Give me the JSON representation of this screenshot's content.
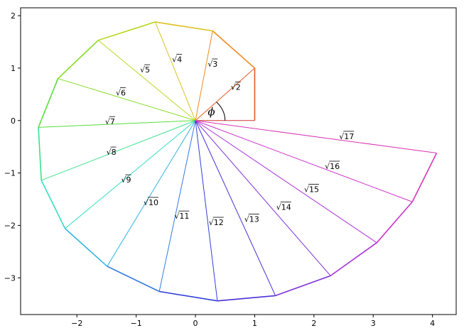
{
  "chart_data": {
    "type": "line",
    "title": "",
    "xlabel": "",
    "ylabel": "",
    "xlim": [
      -2.95,
      4.4
    ],
    "ylim": [
      -3.7,
      2.15
    ],
    "grid": false,
    "xticks": [
      -2,
      -1,
      0,
      1,
      2,
      3,
      4
    ],
    "yticks": [
      -3,
      -2,
      -1,
      0,
      1,
      2
    ],
    "xtick_labels": [
      "−2",
      "−1",
      "0",
      "1",
      "2",
      "3",
      "4"
    ],
    "ytick_labels": [
      "−3",
      "−2",
      "−1",
      "0",
      "1",
      "2"
    ],
    "angle_label": "ϕ",
    "vertices": [
      {
        "x": 1.0,
        "y": 0.0
      },
      {
        "x": 1.0,
        "y": 1.0
      },
      {
        "x": 0.29,
        "y": 1.71
      },
      {
        "x": -0.68,
        "y": 1.88
      },
      {
        "x": -1.64,
        "y": 1.53
      },
      {
        "x": -2.32,
        "y": 0.8
      },
      {
        "x": -2.65,
        "y": -0.13
      },
      {
        "x": -2.6,
        "y": -1.14
      },
      {
        "x": -2.2,
        "y": -2.06
      },
      {
        "x": -1.49,
        "y": -2.78
      },
      {
        "x": -0.61,
        "y": -3.26
      },
      {
        "x": 0.37,
        "y": -3.44
      },
      {
        "x": 1.35,
        "y": -3.34
      },
      {
        "x": 2.28,
        "y": -2.96
      },
      {
        "x": 3.06,
        "y": -2.33
      },
      {
        "x": 3.66,
        "y": -1.55
      },
      {
        "x": 4.07,
        "y": -0.62
      }
    ],
    "labels": [
      {
        "text": "√2",
        "x": 0.68,
        "y": 0.64
      },
      {
        "text": "√3",
        "x": 0.29,
        "y": 1.08
      },
      {
        "text": "√4",
        "x": -0.31,
        "y": 1.17
      },
      {
        "text": "√5",
        "x": -0.85,
        "y": 0.97
      },
      {
        "text": "√6",
        "x": -1.26,
        "y": 0.53
      },
      {
        "text": "√7",
        "x": -1.44,
        "y": -0.02
      },
      {
        "text": "√8",
        "x": -1.42,
        "y": -0.6
      },
      {
        "text": "√9",
        "x": -1.17,
        "y": -1.13
      },
      {
        "text": "√10",
        "x": -0.75,
        "y": -1.56
      },
      {
        "text": "√11",
        "x": -0.23,
        "y": -1.82
      },
      {
        "text": "√12",
        "x": 0.35,
        "y": -1.94
      },
      {
        "text": "√13",
        "x": 0.95,
        "y": -1.88
      },
      {
        "text": "√14",
        "x": 1.49,
        "y": -1.65
      },
      {
        "text": "√15",
        "x": 1.96,
        "y": -1.31
      },
      {
        "text": "√16",
        "x": 2.31,
        "y": -0.87
      },
      {
        "text": "√17",
        "x": 2.55,
        "y": -0.3
      }
    ],
    "colors": [
      "#cc3333",
      "#e55a22",
      "#ef8a1f",
      "#dcc11f",
      "#b9d81f",
      "#86dc22",
      "#55df3a",
      "#3de08c",
      "#35dcc6",
      "#35b5e0",
      "#347ae0",
      "#3140d8",
      "#4a2fd8",
      "#7f2fd8",
      "#aa33d8",
      "#cc33cc",
      "#d836b5"
    ]
  }
}
